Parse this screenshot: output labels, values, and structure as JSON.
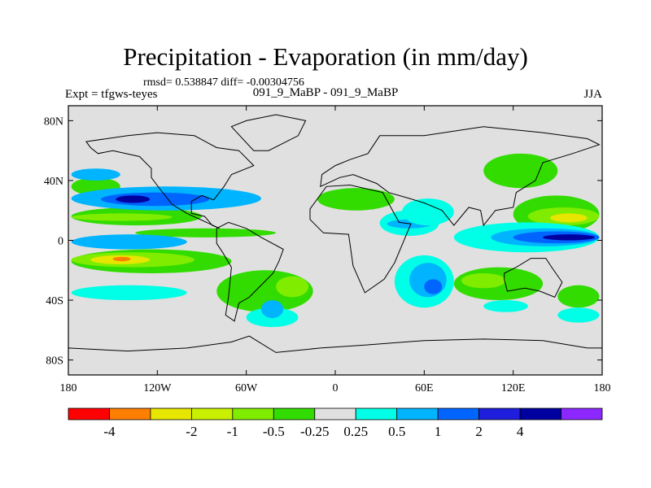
{
  "title": "Precipitation - Evaporation (in mm/day)",
  "stats": "rmsd= 0.538847 diff= -0.00304756",
  "left_label": "Expt = tfgws-teyes",
  "center_label": "091_9_MaBP - 091_9_MaBP",
  "right_label": "JJA",
  "chart_data": {
    "type": "heatmap",
    "title": "Precipitation - Evaporation (in mm/day)",
    "xlabel": "",
    "ylabel": "",
    "xlim": [
      -180,
      180
    ],
    "ylim": [
      -90,
      90
    ],
    "x_ticks": [
      {
        "value": -180,
        "label": "180"
      },
      {
        "value": -120,
        "label": "120W"
      },
      {
        "value": -60,
        "label": "60W"
      },
      {
        "value": 0,
        "label": "0"
      },
      {
        "value": 60,
        "label": "60E"
      },
      {
        "value": 120,
        "label": "120E"
      },
      {
        "value": 180,
        "label": "180"
      }
    ],
    "y_ticks": [
      {
        "value": 80,
        "label": "80N"
      },
      {
        "value": 40,
        "label": "40N"
      },
      {
        "value": 0,
        "label": "0"
      },
      {
        "value": -40,
        "label": "40S"
      },
      {
        "value": -80,
        "label": "80S"
      }
    ],
    "colorbar": {
      "colors": [
        "#ff0000",
        "#ff7f00",
        "#e6e600",
        "#c8f000",
        "#7fec00",
        "#32dc00",
        "#e0e0e0",
        "#00ffe6",
        "#00b4ff",
        "#0064ff",
        "#1e1edc",
        "#0000a0",
        "#8c28ff"
      ],
      "labels": [
        "-4",
        "-2",
        "-1",
        "-0.5",
        "-0.25",
        "0.25",
        "0.5",
        "1",
        "2",
        "4"
      ],
      "label_boundaries": [
        1,
        3,
        4,
        5,
        6,
        7,
        8,
        9,
        10,
        11
      ]
    },
    "regions": [
      {
        "level": -0.5,
        "lon": [
          -178,
          -70
        ],
        "lat": [
          -22,
          -6
        ]
      },
      {
        "level": -1,
        "lon": [
          -178,
          -95
        ],
        "lat": [
          -18,
          -8
        ]
      },
      {
        "level": -2,
        "lon": [
          -165,
          -125
        ],
        "lat": [
          -16,
          -10
        ]
      },
      {
        "level": -4,
        "lon": [
          -150,
          -138
        ],
        "lat": [
          -14,
          -11
        ]
      },
      {
        "level": -0.5,
        "lon": [
          -178,
          -90
        ],
        "lat": [
          10,
          22
        ]
      },
      {
        "level": -1,
        "lon": [
          -178,
          -110
        ],
        "lat": [
          13,
          18
        ]
      },
      {
        "level": -0.5,
        "lon": [
          -135,
          -40
        ],
        "lat": [
          2,
          8
        ]
      },
      {
        "level": -0.5,
        "lon": [
          -178,
          -145
        ],
        "lat": [
          30,
          42
        ]
      },
      {
        "level": -0.5,
        "lon": [
          -80,
          -15
        ],
        "lat": [
          -48,
          -20
        ]
      },
      {
        "level": -1,
        "lon": [
          -40,
          -18
        ],
        "lat": [
          -38,
          -24
        ]
      },
      {
        "level": -0.5,
        "lon": [
          -12,
          40
        ],
        "lat": [
          20,
          35
        ]
      },
      {
        "level": -0.5,
        "lon": [
          80,
          140
        ],
        "lat": [
          -40,
          -18
        ]
      },
      {
        "level": -1,
        "lon": [
          85,
          115
        ],
        "lat": [
          -32,
          -22
        ]
      },
      {
        "level": -0.5,
        "lon": [
          120,
          178
        ],
        "lat": [
          5,
          30
        ]
      },
      {
        "level": -1,
        "lon": [
          130,
          178
        ],
        "lat": [
          10,
          22
        ]
      },
      {
        "level": -2,
        "lon": [
          145,
          170
        ],
        "lat": [
          12,
          18
        ]
      },
      {
        "level": -0.5,
        "lon": [
          100,
          150
        ],
        "lat": [
          35,
          58
        ]
      },
      {
        "level": -0.5,
        "lon": [
          150,
          178
        ],
        "lat": [
          -45,
          -30
        ]
      },
      {
        "level": 0.5,
        "lon": [
          -178,
          -100
        ],
        "lat": [
          -40,
          -30
        ]
      },
      {
        "level": 1,
        "lon": [
          -178,
          -50
        ],
        "lat": [
          20,
          36
        ]
      },
      {
        "level": 2,
        "lon": [
          -158,
          -85
        ],
        "lat": [
          23,
          32
        ]
      },
      {
        "level": 4,
        "lon": [
          -148,
          -125
        ],
        "lat": [
          25,
          30
        ]
      },
      {
        "level": 1,
        "lon": [
          -178,
          -100
        ],
        "lat": [
          -6,
          4
        ]
      },
      {
        "level": 1,
        "lon": [
          -178,
          -145
        ],
        "lat": [
          40,
          48
        ]
      },
      {
        "level": 0.5,
        "lon": [
          -60,
          -25
        ],
        "lat": [
          -58,
          -45
        ]
      },
      {
        "level": 1,
        "lon": [
          -50,
          -35
        ],
        "lat": [
          -52,
          -40
        ]
      },
      {
        "level": 0.5,
        "lon": [
          30,
          70
        ],
        "lat": [
          3,
          20
        ]
      },
      {
        "level": 1,
        "lon": [
          35,
          65
        ],
        "lat": [
          8,
          14
        ]
      },
      {
        "level": 0.5,
        "lon": [
          40,
          80
        ],
        "lat": [
          -45,
          -10
        ]
      },
      {
        "level": 1,
        "lon": [
          50,
          75
        ],
        "lat": [
          -38,
          -15
        ]
      },
      {
        "level": 2,
        "lon": [
          60,
          72
        ],
        "lat": [
          -36,
          -26
        ]
      },
      {
        "level": 0.5,
        "lon": [
          80,
          178
        ],
        "lat": [
          -8,
          12
        ]
      },
      {
        "level": 1,
        "lon": [
          105,
          178
        ],
        "lat": [
          -4,
          8
        ]
      },
      {
        "level": 2,
        "lon": [
          120,
          178
        ],
        "lat": [
          -2,
          6
        ]
      },
      {
        "level": 4,
        "lon": [
          140,
          175
        ],
        "lat": [
          0,
          4
        ]
      },
      {
        "level": 0.5,
        "lon": [
          45,
          80
        ],
        "lat": [
          10,
          28
        ]
      },
      {
        "level": 0.5,
        "lon": [
          100,
          130
        ],
        "lat": [
          -48,
          -40
        ]
      },
      {
        "level": 0.5,
        "lon": [
          150,
          178
        ],
        "lat": [
          -55,
          -45
        ]
      }
    ]
  },
  "land_outlines": [
    [
      [
        -168,
        66
      ],
      [
        -140,
        70
      ],
      [
        -120,
        72
      ],
      [
        -95,
        70
      ],
      [
        -80,
        62
      ],
      [
        -65,
        60
      ],
      [
        -55,
        50
      ],
      [
        -70,
        44
      ],
      [
        -75,
        36
      ],
      [
        -82,
        27
      ],
      [
        -90,
        30
      ],
      [
        -97,
        26
      ],
      [
        -97,
        18
      ],
      [
        -88,
        16
      ],
      [
        -83,
        10
      ],
      [
        -78,
        8
      ],
      [
        -100,
        18
      ],
      [
        -110,
        24
      ],
      [
        -118,
        34
      ],
      [
        -124,
        42
      ],
      [
        -124,
        48
      ],
      [
        -132,
        56
      ],
      [
        -150,
        60
      ],
      [
        -160,
        58
      ],
      [
        -165,
        62
      ]
    ],
    [
      [
        -80,
        8
      ],
      [
        -72,
        12
      ],
      [
        -60,
        8
      ],
      [
        -50,
        2
      ],
      [
        -35,
        -6
      ],
      [
        -38,
        -14
      ],
      [
        -42,
        -22
      ],
      [
        -48,
        -28
      ],
      [
        -58,
        -38
      ],
      [
        -65,
        -42
      ],
      [
        -68,
        -54
      ],
      [
        -74,
        -50
      ],
      [
        -72,
        -38
      ],
      [
        -70,
        -18
      ],
      [
        -76,
        -8
      ],
      [
        -80,
        -2
      ]
    ],
    [
      [
        -17,
        21
      ],
      [
        -6,
        36
      ],
      [
        10,
        37
      ],
      [
        32,
        32
      ],
      [
        43,
        12
      ],
      [
        51,
        11
      ],
      [
        40,
        -15
      ],
      [
        33,
        -26
      ],
      [
        20,
        -35
      ],
      [
        12,
        -17
      ],
      [
        9,
        4
      ],
      [
        -8,
        5
      ],
      [
        -17,
        14
      ]
    ],
    [
      [
        -10,
        36
      ],
      [
        -9,
        44
      ],
      [
        0,
        50
      ],
      [
        10,
        54
      ],
      [
        22,
        58
      ],
      [
        30,
        70
      ],
      [
        60,
        70
      ],
      [
        100,
        76
      ],
      [
        140,
        72
      ],
      [
        170,
        68
      ],
      [
        178,
        64
      ],
      [
        160,
        58
      ],
      [
        140,
        52
      ],
      [
        135,
        40
      ],
      [
        122,
        32
      ],
      [
        120,
        22
      ],
      [
        108,
        20
      ],
      [
        100,
        10
      ],
      [
        98,
        20
      ],
      [
        90,
        22
      ],
      [
        80,
        10
      ],
      [
        72,
        20
      ],
      [
        60,
        25
      ],
      [
        50,
        28
      ],
      [
        36,
        32
      ],
      [
        28,
        38
      ],
      [
        12,
        44
      ],
      [
        3,
        42
      ]
    ],
    [
      [
        114,
        -22
      ],
      [
        122,
        -18
      ],
      [
        132,
        -12
      ],
      [
        142,
        -12
      ],
      [
        146,
        -18
      ],
      [
        153,
        -28
      ],
      [
        148,
        -38
      ],
      [
        138,
        -34
      ],
      [
        128,
        -32
      ],
      [
        116,
        -34
      ],
      [
        114,
        -26
      ]
    ],
    [
      [
        -180,
        -72
      ],
      [
        -140,
        -74
      ],
      [
        -100,
        -72
      ],
      [
        -70,
        -68
      ],
      [
        -58,
        -64
      ],
      [
        -40,
        -75
      ],
      [
        -10,
        -72
      ],
      [
        20,
        -70
      ],
      [
        60,
        -67
      ],
      [
        100,
        -66
      ],
      [
        140,
        -67
      ],
      [
        170,
        -72
      ],
      [
        180,
        -72
      ],
      [
        180,
        -90
      ],
      [
        -180,
        -90
      ]
    ],
    [
      [
        -55,
        60
      ],
      [
        -45,
        60
      ],
      [
        -25,
        70
      ],
      [
        -20,
        80
      ],
      [
        -40,
        84
      ],
      [
        -60,
        80
      ],
      [
        -70,
        76
      ]
    ]
  ]
}
